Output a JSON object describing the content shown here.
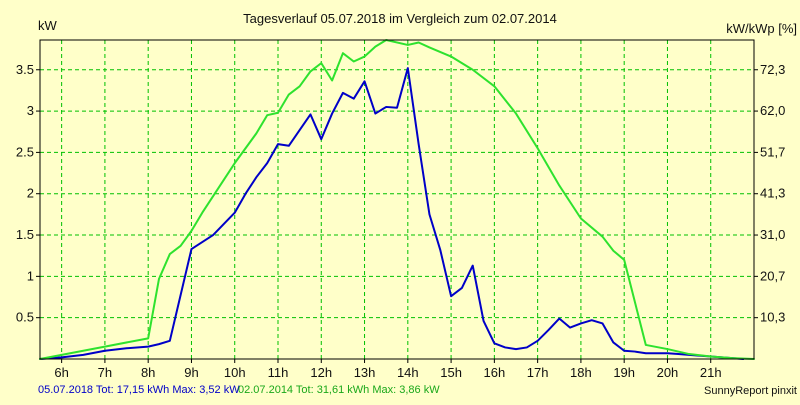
{
  "chart_data": {
    "type": "line",
    "title": "Tagesverlauf 05.07.2018 im Vergleich zum 02.07.2014",
    "ylabel_left": "kW",
    "ylabel_right": "kW/kWp [%]",
    "x_range": [
      5.5,
      22.0
    ],
    "x_ticks": [
      {
        "hour": 6,
        "label": "6h"
      },
      {
        "hour": 7,
        "label": "7h"
      },
      {
        "hour": 8,
        "label": "8h"
      },
      {
        "hour": 9,
        "label": "9h"
      },
      {
        "hour": 10,
        "label": "10h"
      },
      {
        "hour": 11,
        "label": "11h"
      },
      {
        "hour": 12,
        "label": "12h"
      },
      {
        "hour": 13,
        "label": "13h"
      },
      {
        "hour": 14,
        "label": "14h"
      },
      {
        "hour": 15,
        "label": "15h"
      },
      {
        "hour": 16,
        "label": "16h"
      },
      {
        "hour": 17,
        "label": "17h"
      },
      {
        "hour": 18,
        "label": "18h"
      },
      {
        "hour": 19,
        "label": "19h"
      },
      {
        "hour": 20,
        "label": "20h"
      },
      {
        "hour": 21,
        "label": "21h"
      }
    ],
    "ylim": [
      0,
      3.86
    ],
    "y_ticks_left": [
      {
        "value": 0.5,
        "label": "0.5"
      },
      {
        "value": 1.0,
        "label": "1"
      },
      {
        "value": 1.5,
        "label": "1.5"
      },
      {
        "value": 2.0,
        "label": "2"
      },
      {
        "value": 2.5,
        "label": "2.5"
      },
      {
        "value": 3.0,
        "label": "3"
      },
      {
        "value": 3.5,
        "label": "3.5"
      }
    ],
    "y_ticks_right": [
      {
        "value": 0.5,
        "label": "10,3"
      },
      {
        "value": 1.0,
        "label": "20,7"
      },
      {
        "value": 1.5,
        "label": "31,0"
      },
      {
        "value": 2.0,
        "label": "41,3"
      },
      {
        "value": 2.5,
        "label": "51,7"
      },
      {
        "value": 3.0,
        "label": "62,0"
      },
      {
        "value": 3.5,
        "label": "72,3"
      }
    ],
    "grid": true,
    "colors": {
      "background": "#ffffc9",
      "grid": "#00c000",
      "series_2018": "#0000c8",
      "series_2014": "#2ee22e",
      "footer_2018": "#0000c8",
      "footer_2014": "#1aa81a"
    },
    "series": [
      {
        "name": "05.07.2018",
        "color": "#0000c8",
        "points": [
          [
            5.5,
            0
          ],
          [
            6.0,
            0.02
          ],
          [
            6.5,
            0.05
          ],
          [
            7.0,
            0.1
          ],
          [
            7.5,
            0.13
          ],
          [
            8.0,
            0.15
          ],
          [
            8.25,
            0.18
          ],
          [
            8.5,
            0.22
          ],
          [
            9.0,
            1.33
          ],
          [
            9.5,
            1.5
          ],
          [
            10.0,
            1.77
          ],
          [
            10.25,
            2.0
          ],
          [
            10.5,
            2.2
          ],
          [
            10.75,
            2.37
          ],
          [
            11.0,
            2.6
          ],
          [
            11.25,
            2.58
          ],
          [
            11.5,
            2.77
          ],
          [
            11.75,
            2.96
          ],
          [
            12.0,
            2.66
          ],
          [
            12.25,
            2.97
          ],
          [
            12.5,
            3.22
          ],
          [
            12.75,
            3.15
          ],
          [
            13.0,
            3.36
          ],
          [
            13.25,
            2.97
          ],
          [
            13.5,
            3.05
          ],
          [
            13.75,
            3.04
          ],
          [
            14.0,
            3.52
          ],
          [
            14.25,
            2.6
          ],
          [
            14.5,
            1.75
          ],
          [
            14.75,
            1.32
          ],
          [
            15.0,
            0.76
          ],
          [
            15.25,
            0.86
          ],
          [
            15.5,
            1.13
          ],
          [
            15.75,
            0.46
          ],
          [
            16.0,
            0.19
          ],
          [
            16.25,
            0.14
          ],
          [
            16.5,
            0.12
          ],
          [
            16.75,
            0.14
          ],
          [
            17.0,
            0.22
          ],
          [
            17.25,
            0.35
          ],
          [
            17.5,
            0.49
          ],
          [
            17.75,
            0.38
          ],
          [
            18.0,
            0.43
          ],
          [
            18.25,
            0.47
          ],
          [
            18.5,
            0.43
          ],
          [
            18.75,
            0.2
          ],
          [
            19.0,
            0.1
          ],
          [
            19.25,
            0.09
          ],
          [
            19.5,
            0.07
          ],
          [
            19.75,
            0.07
          ],
          [
            20.0,
            0.07
          ],
          [
            20.25,
            0.06
          ],
          [
            20.5,
            0.05
          ],
          [
            21.0,
            0.03
          ],
          [
            21.5,
            0.01
          ],
          [
            21.75,
            0.0
          ]
        ]
      },
      {
        "name": "02.07.2014",
        "color": "#2ee22e",
        "points": [
          [
            5.5,
            0
          ],
          [
            6.5,
            0.1
          ],
          [
            7.0,
            0.15
          ],
          [
            8.0,
            0.25
          ],
          [
            8.25,
            0.97
          ],
          [
            8.5,
            1.27
          ],
          [
            8.75,
            1.37
          ],
          [
            9.0,
            1.55
          ],
          [
            9.25,
            1.77
          ],
          [
            9.5,
            1.97
          ],
          [
            10.0,
            2.37
          ],
          [
            10.5,
            2.73
          ],
          [
            10.75,
            2.95
          ],
          [
            11.0,
            2.98
          ],
          [
            11.25,
            3.2
          ],
          [
            11.5,
            3.3
          ],
          [
            11.75,
            3.48
          ],
          [
            12.0,
            3.58
          ],
          [
            12.25,
            3.37
          ],
          [
            12.5,
            3.7
          ],
          [
            12.75,
            3.6
          ],
          [
            13.0,
            3.66
          ],
          [
            13.25,
            3.78
          ],
          [
            13.5,
            3.86
          ],
          [
            14.0,
            3.8
          ],
          [
            14.25,
            3.83
          ],
          [
            14.5,
            3.77
          ],
          [
            15.0,
            3.66
          ],
          [
            15.5,
            3.5
          ],
          [
            16.0,
            3.3
          ],
          [
            16.5,
            2.97
          ],
          [
            17.0,
            2.55
          ],
          [
            17.5,
            2.1
          ],
          [
            18.0,
            1.7
          ],
          [
            18.5,
            1.48
          ],
          [
            18.75,
            1.31
          ],
          [
            19.0,
            1.2
          ],
          [
            19.5,
            0.17
          ],
          [
            20.0,
            0.12
          ],
          [
            20.5,
            0.06
          ],
          [
            21.0,
            0.03
          ],
          [
            21.5,
            0.01
          ],
          [
            22.0,
            0.0
          ]
        ]
      }
    ]
  },
  "footer": {
    "left_text": "05.07.2018 Tot: 17,15 kWh Max: 3,52 kW",
    "middle_text": "02.07.2014 Tot: 31,61 kWh Max: 3,86 kW",
    "right_text": "SunnyReport pinxit"
  }
}
